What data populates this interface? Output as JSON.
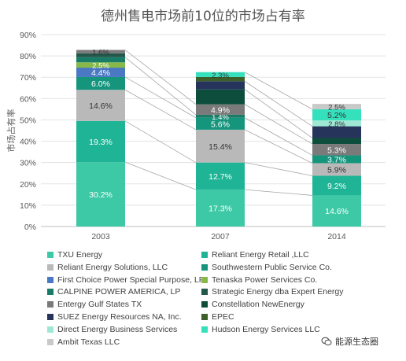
{
  "title": "德州售电市场前10位的市场占有率",
  "watermark": {
    "text": "能源生态圈",
    "icon": "wechat-icon"
  },
  "chart_data": {
    "type": "bar",
    "stacked": true,
    "title": "德州售电市场前10位的市场占有率",
    "xlabel": "",
    "ylabel": "市场占有率",
    "ylim": [
      0,
      90
    ],
    "yticks": [
      "0%",
      "10%",
      "20%",
      "30%",
      "40%",
      "50%",
      "60%",
      "70%",
      "80%",
      "90%"
    ],
    "categories": [
      "2003",
      "2007",
      "2014"
    ],
    "grid": true,
    "legend_position": "bottom",
    "series": [
      {
        "name": "TXU Energy",
        "color": "#3ec9a6",
        "values": [
          30.2,
          17.3,
          14.6
        ],
        "labels": [
          "30.2%",
          "17.3%",
          "14.6%"
        ]
      },
      {
        "name": "Reliant Energy Retail ,LLC",
        "color": "#1fb495",
        "values": [
          19.3,
          12.7,
          9.2
        ],
        "labels": [
          "19.3%",
          "12.7%",
          "9.2%"
        ]
      },
      {
        "name": "Reliant Energy Solutions, LLC",
        "color": "#b9b9b9",
        "values": [
          14.6,
          15.4,
          5.9
        ],
        "labels": [
          "14.6%",
          "15.4%",
          "5.9%"
        ]
      },
      {
        "name": "Southwestern Public Service Co.",
        "color": "#16957d",
        "values": [
          6.0,
          5.6,
          3.7
        ],
        "labels": [
          "6.0%",
          "5.6%",
          "3.7%"
        ]
      },
      {
        "name": "First Choice Power Special Purpose, LP",
        "color": "#4a78c3",
        "values": [
          4.4,
          0,
          0
        ],
        "labels": [
          "4.4%",
          "",
          ""
        ]
      },
      {
        "name": "Tenaska Power Services Co.",
        "color": "#86b84a",
        "values": [
          2.5,
          0,
          0
        ],
        "labels": [
          "2.5%",
          "",
          ""
        ]
      },
      {
        "name": "CALPINE POWER AMERICA, LP",
        "color": "#187c66",
        "values": [
          2.4,
          1.4,
          0
        ],
        "labels": [
          "",
          "1.4%",
          ""
        ]
      },
      {
        "name": "Strategic Energy dba Expert Energy",
        "color": "#22574a",
        "values": [
          1.8,
          0,
          0
        ],
        "labels": [
          "",
          "",
          ""
        ]
      },
      {
        "name": "Entergy Gulf States TX",
        "color": "#7a7a7a",
        "values": [
          1.6,
          4.9,
          5.3
        ],
        "labels": [
          "",
          "4.9%",
          "5.3%"
        ]
      },
      {
        "name": "Constellation NewEnergy",
        "color": "#0d4d3c",
        "values": [
          0,
          7.0,
          2.8
        ],
        "labels": [
          "",
          "",
          ""
        ]
      },
      {
        "name": "SUEZ Energy Resources NA, Inc.",
        "color": "#26345c",
        "values": [
          0,
          3.8,
          5.5
        ],
        "labels": [
          "",
          "",
          ""
        ]
      },
      {
        "name": "EPEC",
        "color": "#3d5f2a",
        "values": [
          0,
          2.0,
          0
        ],
        "labels": [
          "",
          "",
          ""
        ]
      },
      {
        "name": "Direct Energy Business Services",
        "color": "#9fe8d6",
        "values": [
          0,
          0,
          2.8
        ],
        "labels": [
          "",
          "",
          "2.8%"
        ]
      },
      {
        "name": "Hudson Energy Services LLC",
        "color": "#35e0bd",
        "values": [
          0,
          2.3,
          5.2
        ],
        "labels": [
          "",
          "2.3%",
          "5.2%"
        ]
      },
      {
        "name": "Ambit Texas LLC",
        "color": "#c9c9c9",
        "values": [
          0,
          0,
          2.5
        ],
        "labels": [
          "",
          "",
          "2.5%"
        ]
      }
    ],
    "top_labels": [
      "1.6%",
      "",
      ""
    ]
  }
}
